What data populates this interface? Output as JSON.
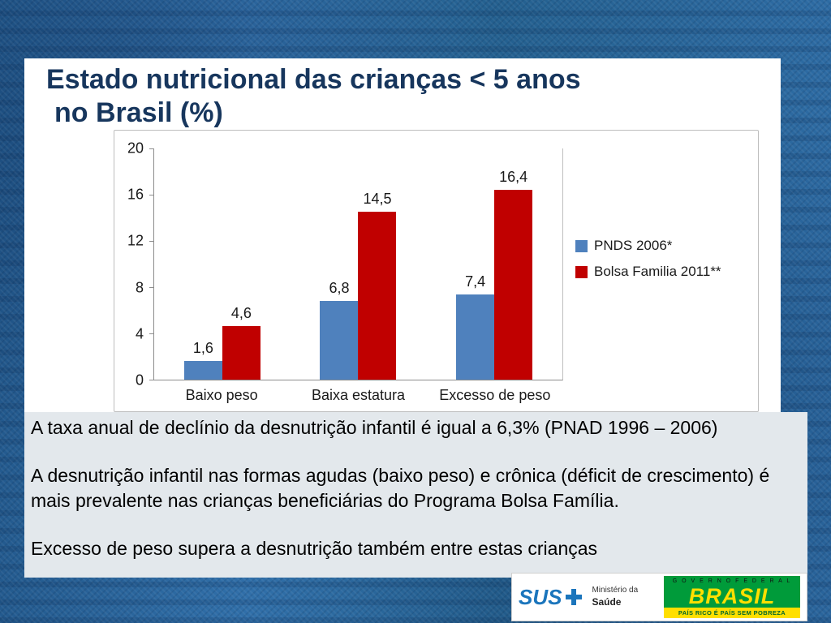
{
  "slide_title": {
    "line1": "Estado nutricional das crianças < 5 anos",
    "line2": "no Brasil (%)"
  },
  "chart_data": {
    "type": "bar",
    "title": "",
    "categories": [
      "Baixo peso",
      "Baixa estatura",
      "Excesso de peso"
    ],
    "series": [
      {
        "name": "PNDS 2006*",
        "color": "#4F81BD",
        "values": [
          1.6,
          6.8,
          7.4
        ],
        "labels": [
          "1,6",
          "6,8",
          "7,4"
        ]
      },
      {
        "name": "Bolsa Familia 2011**",
        "color": "#C00000",
        "values": [
          4.6,
          14.5,
          16.4
        ],
        "labels": [
          "4,6",
          "14,5",
          "16,4"
        ]
      }
    ],
    "xlabel": "",
    "ylabel": "",
    "ylim": [
      0,
      20
    ],
    "yticks": [
      0,
      4,
      8,
      12,
      16,
      20
    ],
    "grid": false,
    "legend_position": "right"
  },
  "notes": {
    "p1": "A taxa anual de declínio da desnutrição infantil é igual a 6,3% (PNAD 1996 – 2006)",
    "p2": "A desnutrição infantil nas formas agudas (baixo peso) e crônica (déficit de crescimento)  é mais prevalente nas crianças beneficiárias do Programa Bolsa Família.",
    "p3": "Excesso de peso supera a desnutrição também entre estas crianças"
  },
  "footer": {
    "sus": "SUS",
    "ministry_small": "Ministério da",
    "ministry_bold": "Saúde",
    "governo": "G O V E R N O   F E D E R A L",
    "brasil": "BRASIL",
    "tagline": "PAÍS RICO É PAÍS SEM POBREZA"
  },
  "colors": {
    "title_text": "#17365D",
    "series_blue": "#4F81BD",
    "series_red": "#C00000",
    "frame_background": "#2A6399",
    "notes_panel": "#E3E8EC",
    "brasil_green": "#009B3A",
    "brasil_yellow": "#FFDF00",
    "sus_blue": "#1B75BC"
  }
}
